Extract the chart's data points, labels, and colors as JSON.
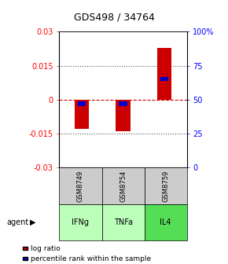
{
  "title": "GDS498 / 34764",
  "samples": [
    "GSM8749",
    "GSM8754",
    "GSM8759"
  ],
  "agents": [
    "IFNg",
    "TNFa",
    "IL4"
  ],
  "log_ratios": [
    -0.013,
    -0.014,
    0.023
  ],
  "percentile_ranks_pct": [
    47,
    47,
    65
  ],
  "ylim_left": [
    -0.03,
    0.03
  ],
  "ylim_right": [
    0,
    100
  ],
  "yticks_left": [
    -0.03,
    -0.015,
    0,
    0.015,
    0.03
  ],
  "yticks_left_labels": [
    "-0.03",
    "-0.015",
    "0",
    "0.015",
    "0.03"
  ],
  "yticks_right": [
    0,
    25,
    50,
    75,
    100
  ],
  "yticks_right_labels": [
    "0",
    "25",
    "50",
    "75",
    "100%"
  ],
  "bar_color": "#cc0000",
  "pct_color": "#0000cc",
  "zero_line_color": "#cc0000",
  "dotted_line_color": "#555555",
  "agent_colors": [
    "#bbffbb",
    "#bbffbb",
    "#55dd55"
  ],
  "sample_bg": "#cccccc",
  "legend_items": [
    "log ratio",
    "percentile rank within the sample"
  ],
  "bar_width": 0.35,
  "pct_bar_width": 0.2
}
